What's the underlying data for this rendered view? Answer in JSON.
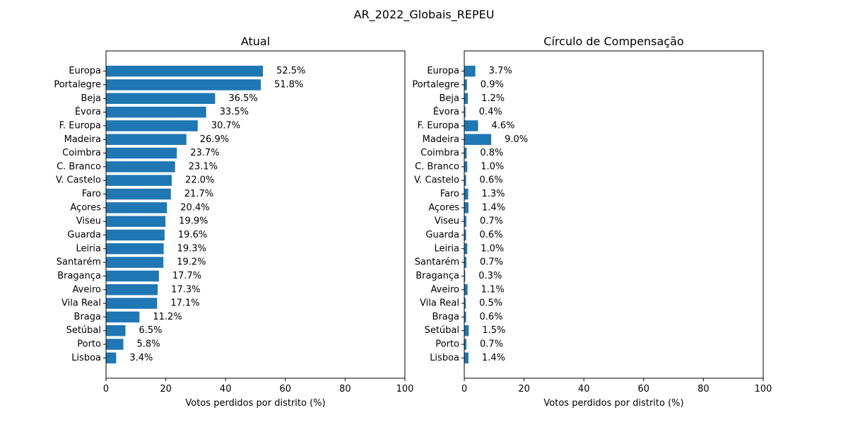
{
  "figure_title": "AR_2022_Globais_REPEU",
  "chart_data": [
    {
      "type": "bar",
      "orientation": "horizontal",
      "title": "Atual",
      "xlabel": "Votos perdidos por distrito (%)",
      "ylabel": "",
      "xlim": [
        0,
        100
      ],
      "xticks": [
        0,
        20,
        40,
        60,
        80,
        100
      ],
      "grid": false,
      "bar_color": "#1f77b4",
      "categories": [
        "Europa",
        "Portalegre",
        "Beja",
        "Évora",
        "F. Europa",
        "Madeira",
        "Coimbra",
        "C. Branco",
        "V. Castelo",
        "Faro",
        "Açores",
        "Viseu",
        "Guarda",
        "Leiria",
        "Santarém",
        "Bragança",
        "Aveiro",
        "Vila Real",
        "Braga",
        "Setúbal",
        "Porto",
        "Lisboa"
      ],
      "values": [
        52.5,
        51.8,
        36.5,
        33.5,
        30.7,
        26.9,
        23.7,
        23.1,
        22.0,
        21.7,
        20.4,
        19.9,
        19.6,
        19.3,
        19.2,
        17.7,
        17.3,
        17.1,
        11.2,
        6.5,
        5.8,
        3.4
      ],
      "value_labels": [
        "52.5%",
        "51.8%",
        "36.5%",
        "33.5%",
        "30.7%",
        "26.9%",
        "23.7%",
        "23.1%",
        "22.0%",
        "21.7%",
        "20.4%",
        "19.9%",
        "19.6%",
        "19.3%",
        "19.2%",
        "17.7%",
        "17.3%",
        "17.1%",
        "11.2%",
        "6.5%",
        "5.8%",
        "3.4%"
      ]
    },
    {
      "type": "bar",
      "orientation": "horizontal",
      "title": "Círculo de Compensação",
      "xlabel": "Votos perdidos por distrito (%)",
      "ylabel": "",
      "xlim": [
        0,
        100
      ],
      "xticks": [
        0,
        20,
        40,
        60,
        80,
        100
      ],
      "grid": false,
      "bar_color": "#1f77b4",
      "categories": [
        "Europa",
        "Portalegre",
        "Beja",
        "Évora",
        "F. Europa",
        "Madeira",
        "Coimbra",
        "C. Branco",
        "V. Castelo",
        "Faro",
        "Açores",
        "Viseu",
        "Guarda",
        "Leiria",
        "Santarém",
        "Bragança",
        "Aveiro",
        "Vila Real",
        "Braga",
        "Setúbal",
        "Porto",
        "Lisboa"
      ],
      "values": [
        3.7,
        0.9,
        1.2,
        0.4,
        4.6,
        9.0,
        0.8,
        1.0,
        0.6,
        1.3,
        1.4,
        0.7,
        0.6,
        1.0,
        0.7,
        0.3,
        1.1,
        0.5,
        0.6,
        1.5,
        0.7,
        1.4
      ],
      "value_labels": [
        "3.7%",
        "0.9%",
        "1.2%",
        "0.4%",
        "4.6%",
        "9.0%",
        "0.8%",
        "1.0%",
        "0.6%",
        "1.3%",
        "1.4%",
        "0.7%",
        "0.6%",
        "1.0%",
        "0.7%",
        "0.3%",
        "1.1%",
        "0.5%",
        "0.6%",
        "1.5%",
        "0.7%",
        "1.4%"
      ]
    }
  ]
}
